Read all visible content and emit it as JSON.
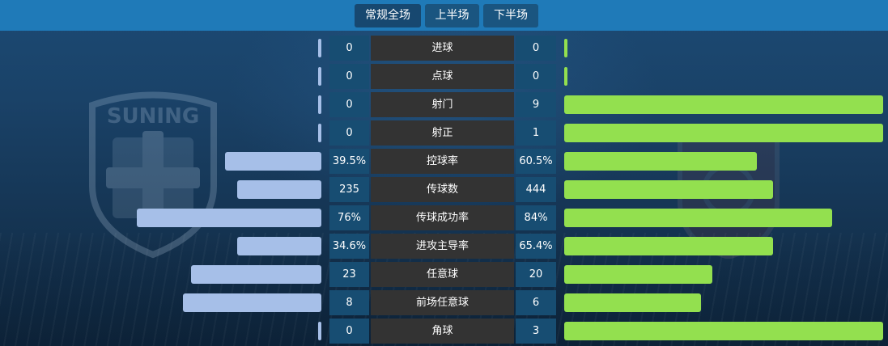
{
  "tabs": [
    {
      "label": "常规全场",
      "active": true
    },
    {
      "label": "上半场",
      "active": false
    },
    {
      "label": "下半场",
      "active": false
    }
  ],
  "home_team_crest_text": "SUNING",
  "colors": {
    "home_bar": "#a6bfe8",
    "away_bar": "#93e04f",
    "topbar": "#1f7ab8",
    "label_bg": "#333333",
    "value_bg": "#174d72"
  },
  "stats": [
    {
      "label": "进球",
      "home": "0",
      "away": "0",
      "home_share": 0,
      "away_share": 0
    },
    {
      "label": "点球",
      "home": "0",
      "away": "0",
      "home_share": 0,
      "away_share": 0
    },
    {
      "label": "射门",
      "home": "0",
      "away": "9",
      "home_share": 0,
      "away_share": 1
    },
    {
      "label": "射正",
      "home": "0",
      "away": "1",
      "home_share": 0,
      "away_share": 1
    },
    {
      "label": "控球率",
      "home": "39.5%",
      "away": "60.5%",
      "home_share": 0.395,
      "away_share": 0.605
    },
    {
      "label": "传球数",
      "home": "235",
      "away": "444",
      "home_share": 0.346,
      "away_share": 0.654
    },
    {
      "label": "传球成功率",
      "home": "76%",
      "away": "84%",
      "home_share": 0.76,
      "away_share": 0.84
    },
    {
      "label": "进攻主导率",
      "home": "34.6%",
      "away": "65.4%",
      "home_share": 0.346,
      "away_share": 0.654
    },
    {
      "label": "任意球",
      "home": "23",
      "away": "20",
      "home_share": 0.535,
      "away_share": 0.465
    },
    {
      "label": "前场任意球",
      "home": "8",
      "away": "6",
      "home_share": 0.571,
      "away_share": 0.429
    },
    {
      "label": "角球",
      "home": "0",
      "away": "3",
      "home_share": 0,
      "away_share": 1
    }
  ]
}
